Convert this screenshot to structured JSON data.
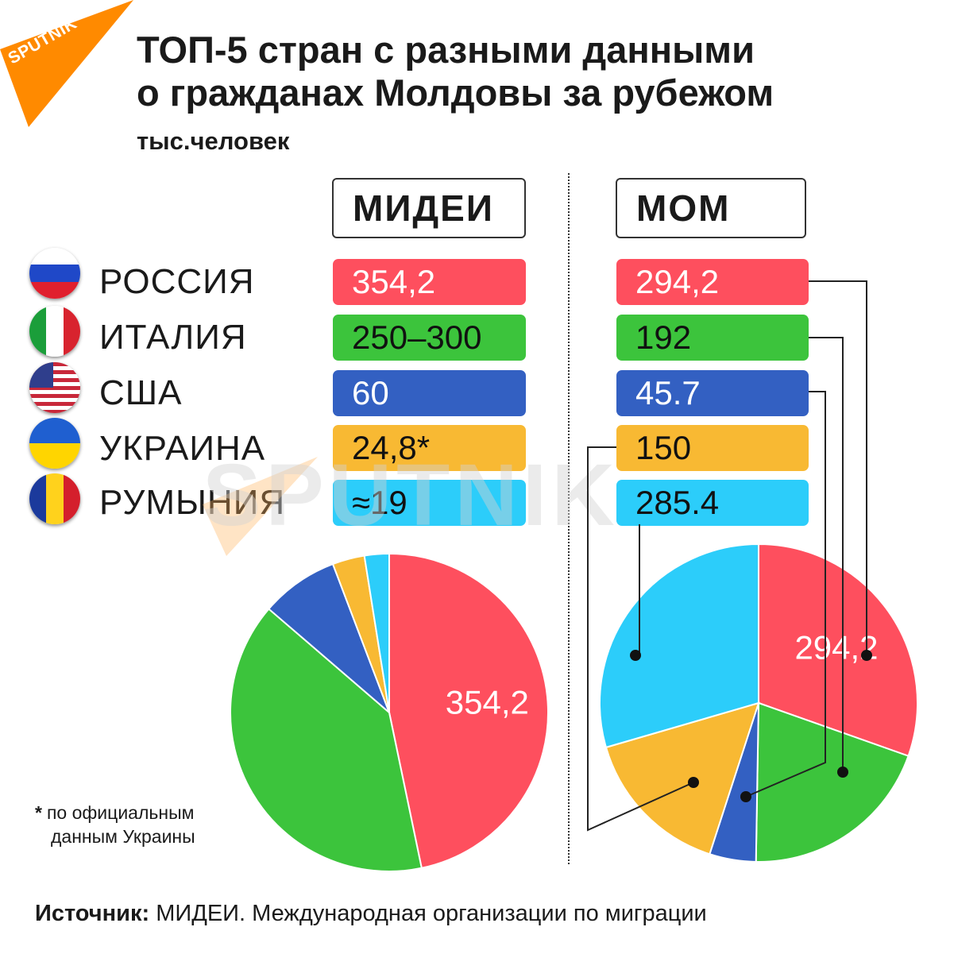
{
  "logo": {
    "text": "SPUTNIK",
    "color": "#ff8a00"
  },
  "title": {
    "line1": "ТОП-5 стран с разными данными",
    "line2": "о гражданах Молдовы за рубежом"
  },
  "subtitle": "тыс.человек",
  "columns": {
    "midei": "МИДЕИ",
    "mom": "МОМ"
  },
  "rows": [
    {
      "country": "РОССИЯ",
      "flag": "russia-flag-icon",
      "midei": "354,2",
      "mom": "294,2",
      "color": "#fe4f5e"
    },
    {
      "country": "ИТАЛИЯ",
      "flag": "italy-flag-icon",
      "midei": "250–300",
      "mom": "192",
      "color": "#3cc43c"
    },
    {
      "country": "США",
      "flag": "usa-flag-icon",
      "midei": "60",
      "mom": "45.7",
      "color": "#3360c2"
    },
    {
      "country": "УКРАИНА",
      "flag": "ukraine-flag-icon",
      "midei": "24,8*",
      "mom": "150",
      "color": "#f8b933"
    },
    {
      "country": "РУМЫНИЯ",
      "flag": "romania-flag-icon",
      "midei": "≈19",
      "mom": "285.4",
      "color": "#2ccdfa"
    }
  ],
  "watermark": "SPUTNIK",
  "footnote": {
    "star": "*",
    "line1": "по официальным",
    "line2": "данным Украины"
  },
  "source": {
    "label": "Источник:",
    "text": " МИДЕИ. Международная организации по миграции"
  },
  "chart_data": [
    {
      "type": "pie",
      "name": "МИДЕИ",
      "categories": [
        "РОССИЯ",
        "ИТАЛИЯ",
        "США",
        "УКРАИНА",
        "РУМЫНИЯ"
      ],
      "values": [
        354.2,
        300,
        60,
        24.8,
        19
      ],
      "colors": [
        "#fe4f5e",
        "#3cc43c",
        "#3360c2",
        "#f8b933",
        "#2ccdfa"
      ],
      "data_labels": [
        "354,2",
        "",
        "",
        "",
        ""
      ]
    },
    {
      "type": "pie",
      "name": "МОМ",
      "categories": [
        "РОССИЯ",
        "ИТАЛИЯ",
        "США",
        "УКРАИНА",
        "РУМЫНИЯ"
      ],
      "values": [
        294.2,
        192,
        45.7,
        150,
        285.4
      ],
      "colors": [
        "#fe4f5e",
        "#3cc43c",
        "#3360c2",
        "#f8b933",
        "#2ccdfa"
      ],
      "data_labels": [
        "294,2",
        "",
        "",
        "",
        ""
      ]
    }
  ]
}
